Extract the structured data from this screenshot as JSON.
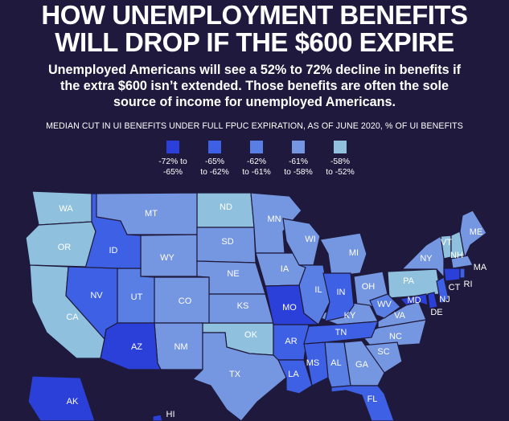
{
  "title_line1": "HOW UNEMPLOYMENT BENEFITS",
  "title_line2": "WILL DROP IF THE $600 EXPIRE",
  "subtitle_line1": "Unemployed Americans will see a 52% to 72% decline in benefits if",
  "subtitle_line2": "the extra $600 isn’t extended. Those benefits are often the sole",
  "subtitle_line3": "source of income for unemployed Americans.",
  "caption": "MEDIAN CUT IN UI BENEFITS UNDER FULL FPUC EXPIRATION, AS OF JUNE 2020, % OF UI BENEFITS",
  "legend": [
    {
      "line1": "-72% to",
      "line2": "-65%",
      "color": "#2b3fd9"
    },
    {
      "line1": "-65%",
      "line2": "to -62%",
      "color": "#3d60e4"
    },
    {
      "line1": "-62%",
      "line2": "to -61%",
      "color": "#5a7fe4"
    },
    {
      "line1": "-61%",
      "line2": "to -58%",
      "color": "#7596e0"
    },
    {
      "line1": "-58%",
      "line2": "to -52%",
      "color": "#8fc1de"
    }
  ],
  "states": {
    "WA": "WA",
    "OR": "OR",
    "CA": "CA",
    "ID": "ID",
    "NV": "NV",
    "AZ": "AZ",
    "UT": "UT",
    "MT": "MT",
    "WY": "WY",
    "CO": "CO",
    "NM": "NM",
    "ND": "ND",
    "SD": "SD",
    "NE": "NE",
    "KS": "KS",
    "OK": "OK",
    "TX": "TX",
    "MN": "MN",
    "IA": "IA",
    "MO": "MO",
    "AR": "AR",
    "LA": "LA",
    "WI": "WI",
    "IL": "IL",
    "MI": "MI",
    "IN": "IN",
    "OH": "OH",
    "KY": "KY",
    "TN": "TN",
    "MS": "MS",
    "AL": "AL",
    "GA": "GA",
    "FL": "FL",
    "SC": "SC",
    "NC": "NC",
    "VA": "VA",
    "WV": "WV",
    "PA": "PA",
    "NY": "NY",
    "MD": "MD",
    "DE": "DE",
    "NJ": "NJ",
    "CT": "CT",
    "RI": "RI",
    "MA": "MA",
    "VT": "VT",
    "NH": "NH",
    "ME": "ME",
    "AK": "AK",
    "HI": "HI"
  }
}
